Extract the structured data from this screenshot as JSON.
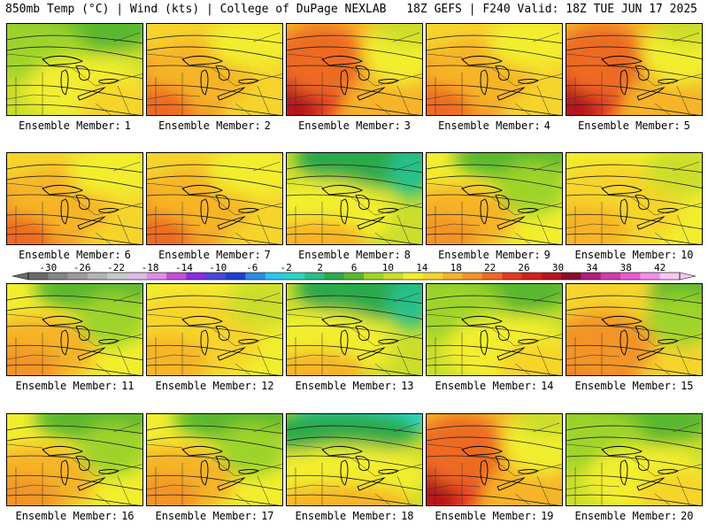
{
  "header": {
    "left": "850mb Temp (°C) | Wind (kts) | College of DuPage NEXLAB",
    "right": "18Z GEFS | F240 Valid: 18Z TUE JUN 17 2025"
  },
  "panel_label_prefix": "Ensemble Member:",
  "members": [
    {
      "number": "1",
      "pattern": "cool"
    },
    {
      "number": "2",
      "pattern": "warm"
    },
    {
      "number": "3",
      "pattern": "hot-west"
    },
    {
      "number": "4",
      "pattern": "warm"
    },
    {
      "number": "5",
      "pattern": "hot-west"
    },
    {
      "number": "6",
      "pattern": "warm"
    },
    {
      "number": "7",
      "pattern": "warm"
    },
    {
      "number": "8",
      "pattern": "cool-north"
    },
    {
      "number": "9",
      "pattern": "mixed"
    },
    {
      "number": "10",
      "pattern": "mild"
    },
    {
      "number": "11",
      "pattern": "mixed"
    },
    {
      "number": "12",
      "pattern": "mild"
    },
    {
      "number": "13",
      "pattern": "cool-north"
    },
    {
      "number": "14",
      "pattern": "cool"
    },
    {
      "number": "15",
      "pattern": "warm-sw"
    },
    {
      "number": "16",
      "pattern": "mixed"
    },
    {
      "number": "17",
      "pattern": "mixed"
    },
    {
      "number": "18",
      "pattern": "very-cool-north"
    },
    {
      "number": "19",
      "pattern": "hot-west"
    },
    {
      "number": "20",
      "pattern": "cool"
    }
  ],
  "colorbar": {
    "tick_labels": [
      "-30",
      "-26",
      "-22",
      "-18",
      "-14",
      "-10",
      "-6",
      "-2",
      "2",
      "6",
      "10",
      "14",
      "18",
      "22",
      "26",
      "30",
      "34",
      "38",
      "42"
    ],
    "colors": [
      "#6a6a6a",
      "#858585",
      "#9b9b9b",
      "#b4b4b4",
      "#c9c9c9",
      "#dcbbe6",
      "#e18de8",
      "#c64cd6",
      "#8a2be2",
      "#4a4ad8",
      "#1e3fd6",
      "#2a8ce0",
      "#28c8e8",
      "#2ad6c0",
      "#27c08a",
      "#2aaa4a",
      "#5ab82e",
      "#9ed42a",
      "#ccde2a",
      "#f2ee2e",
      "#f6d42c",
      "#f6b428",
      "#f29426",
      "#ee6a24",
      "#e63a20",
      "#d6201a",
      "#b8141e",
      "#8a0e2a",
      "#b01e7a",
      "#d23aac",
      "#ea5cd4",
      "#f48ee8",
      "#f8c6f2"
    ]
  }
}
